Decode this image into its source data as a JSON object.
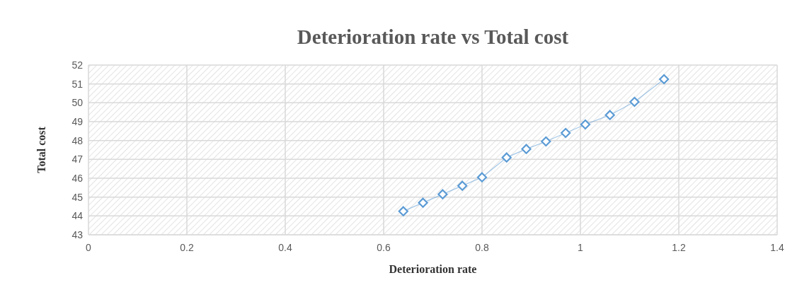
{
  "chart_data": {
    "type": "line",
    "title": "Deterioration rate vs Total cost",
    "xlabel": "Deterioration rate",
    "ylabel": "Total cost",
    "x": [
      0.64,
      0.68,
      0.72,
      0.76,
      0.8,
      0.85,
      0.89,
      0.93,
      0.97,
      1.01,
      1.06,
      1.11,
      1.17
    ],
    "series": [
      {
        "color": "#5b9bd5",
        "values": [
          44.25,
          44.7,
          45.15,
          45.6,
          46.05,
          47.1,
          47.55,
          47.95,
          48.4,
          48.85,
          49.35,
          50.05,
          51.25
        ]
      }
    ],
    "xlim": [
      0,
      1.4
    ],
    "xticks": [
      0,
      0.2,
      0.4,
      0.6,
      0.8,
      1,
      1.2,
      1.4
    ],
    "ylim": [
      43,
      52
    ],
    "yticks": [
      43,
      44,
      45,
      46,
      47,
      48,
      49,
      50,
      51,
      52
    ],
    "grid": true,
    "marker": "diamond",
    "line_style": "solid"
  }
}
